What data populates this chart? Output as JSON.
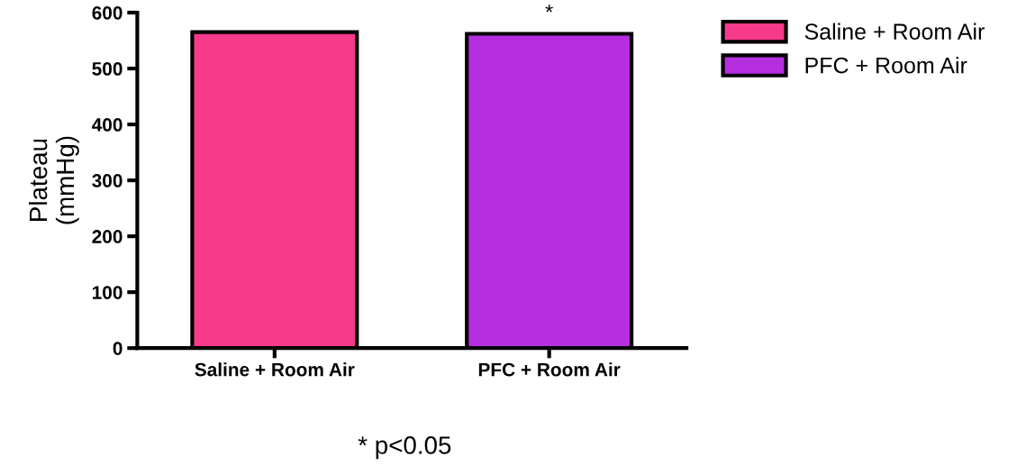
{
  "chart_data": {
    "type": "bar",
    "ylabel": "Plateau\n(mmHg)",
    "categories": [
      "Saline + Room Air",
      "PFC + Room Air"
    ],
    "series": [
      {
        "name": "Saline + Room Air",
        "color": "#f83a8a",
        "values": [
          565,
          null
        ]
      },
      {
        "name": "PFC + Room Air",
        "color": "#b52ee0",
        "values": [
          null,
          562
        ]
      }
    ],
    "ylim": [
      0,
      600
    ],
    "yticks": [
      0,
      100,
      200,
      300,
      400,
      500,
      600
    ],
    "annotations": [
      {
        "text": "*",
        "x": "PFC + Room Air",
        "y": 562
      },
      "* p<0.05"
    ],
    "legend": "right",
    "grid": false
  }
}
